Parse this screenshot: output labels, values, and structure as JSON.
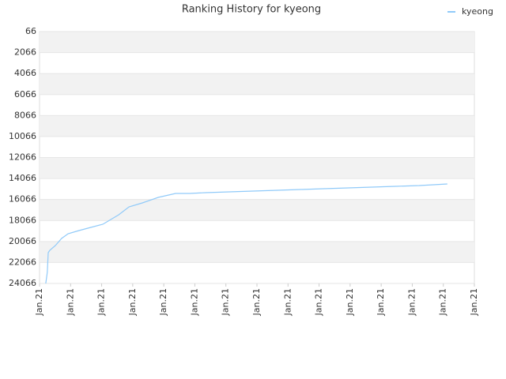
{
  "chart_data": {
    "type": "line",
    "title": "Ranking History for kyeong",
    "x": [
      0.2,
      0.25,
      0.28,
      0.33,
      0.51,
      0.71,
      0.92,
      1.27,
      1.65,
      2.04,
      2.55,
      2.88,
      3.31,
      3.82,
      4.38,
      4.84,
      5.35,
      6.11,
      6.87,
      7.64,
      8.4,
      9.16,
      9.93,
      10.69,
      11.45,
      12.22,
      13.13
    ],
    "series": [
      {
        "name": "kyeong",
        "color": "#90caf9",
        "values": [
          24066,
          23013,
          21132,
          20906,
          20455,
          19778,
          19326,
          19025,
          18724,
          18423,
          17520,
          16768,
          16392,
          15866,
          15489,
          15489,
          15414,
          15339,
          15264,
          15188,
          15113,
          15038,
          14963,
          14888,
          14812,
          14737,
          14586
        ]
      }
    ],
    "xlim": [
      0,
      14
    ],
    "xticks": [
      {
        "value": 0,
        "label": "Jan.21"
      },
      {
        "value": 1,
        "label": "Jan.21"
      },
      {
        "value": 2,
        "label": "Jan.21"
      },
      {
        "value": 3,
        "label": "Jan.21"
      },
      {
        "value": 4,
        "label": "Jan.21"
      },
      {
        "value": 5,
        "label": "Jan.21"
      },
      {
        "value": 6,
        "label": "Jan.21"
      },
      {
        "value": 7,
        "label": "Jan.21"
      },
      {
        "value": 8,
        "label": "Jan.21"
      },
      {
        "value": 9,
        "label": "Jan.21"
      },
      {
        "value": 10,
        "label": "Jan.21"
      },
      {
        "value": 11,
        "label": "Jan.21"
      },
      {
        "value": 12,
        "label": "Jan.21"
      },
      {
        "value": 13,
        "label": "Jan.21"
      },
      {
        "value": 14,
        "label": "Jan.21"
      }
    ],
    "ylim": [
      24066,
      66
    ],
    "yticks": [
      66,
      2066,
      4066,
      6066,
      8066,
      10066,
      12066,
      14066,
      16066,
      18066,
      20066,
      22066,
      24066
    ],
    "grid": true,
    "band_color": "#f2f2f2",
    "legend": "upper right"
  }
}
